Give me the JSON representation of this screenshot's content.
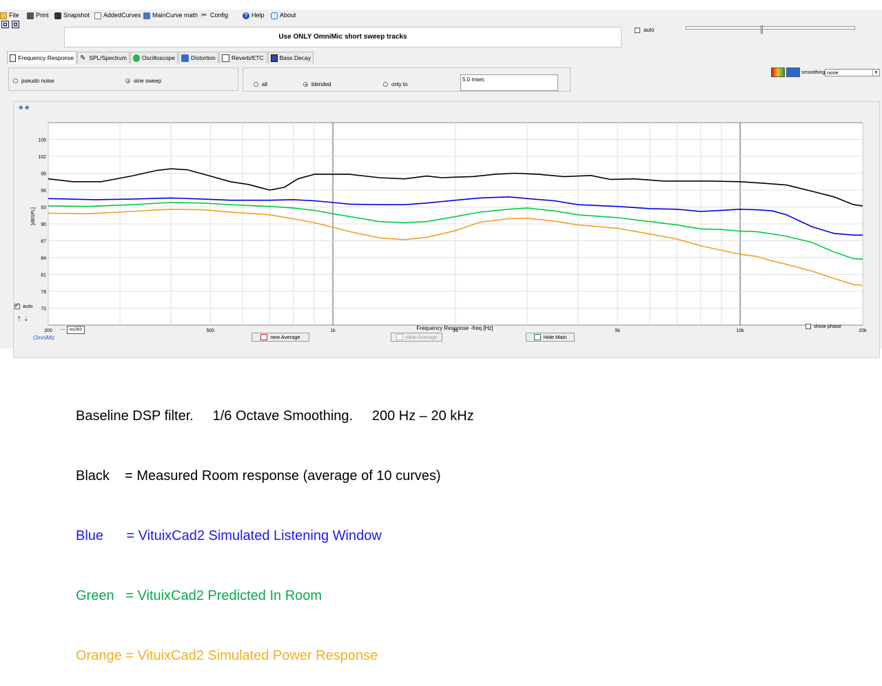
{
  "menu": {
    "items": [
      {
        "label": "File",
        "icon": "folder-icon"
      },
      {
        "label": "Print",
        "icon": "printer-icon"
      },
      {
        "label": "Snapshot",
        "icon": "camera-icon"
      },
      {
        "label": "AddedCurves",
        "icon": "curves-icon"
      },
      {
        "label": "MainCurve math",
        "icon": "calculator-icon"
      },
      {
        "label": "Config",
        "icon": "tools-icon"
      },
      {
        "label": "Help",
        "icon": "help-icon"
      },
      {
        "label": "About",
        "icon": "chat-icon"
      }
    ]
  },
  "message": "Use ONLY OmniMic short sweep tracks",
  "auto_label": "auto",
  "tabs": [
    {
      "label": "Frequency Response",
      "active": true,
      "icon": "freq-response-icon"
    },
    {
      "label": "SPL/Spectrum",
      "active": false,
      "icon": "spl-icon"
    },
    {
      "label": "Oscilloscope",
      "active": false,
      "icon": "oscilloscope-icon"
    },
    {
      "label": "Distortion",
      "active": false,
      "icon": "distortion-icon"
    },
    {
      "label": "Reverb/ETC",
      "active": false,
      "icon": "reverb-icon"
    },
    {
      "label": "Bass Decay",
      "active": false,
      "icon": "bass-decay-icon"
    }
  ],
  "signal": {
    "pseudo_noise": "pseudo noise",
    "sine_sweep": "sine sweep",
    "selected": "sine sweep"
  },
  "window": {
    "all": "all",
    "blended": "blended",
    "only_to": "only to",
    "selected": "blended",
    "msec": "5.0 msec"
  },
  "smoothing": {
    "label": "smoothing",
    "value": "none"
  },
  "chart": {
    "chart_data": {
      "type": "line",
      "xlabel": "Frequency Response -freq [Hz]",
      "ylabel": "[dBSPL]",
      "x_scale": "log",
      "xlim": [
        200,
        20000
      ],
      "ylim": [
        72,
        108
      ],
      "yticks": [
        75,
        78,
        81,
        84,
        87,
        90,
        93,
        96,
        99,
        102,
        105
      ],
      "xtick_labels": [
        {
          "v": 200,
          "t": "200"
        },
        {
          "v": 500,
          "t": "500"
        },
        {
          "v": 1000,
          "t": "1k"
        },
        {
          "v": 2000,
          "t": "2k"
        },
        {
          "v": 5000,
          "t": "5k"
        },
        {
          "v": 10000,
          "t": "10k"
        },
        {
          "v": 20000,
          "t": "20k"
        }
      ],
      "grid": true,
      "series": [
        {
          "color": "#000000",
          "x": [
            200,
            230,
            270,
            320,
            370,
            400,
            440,
            500,
            560,
            620,
            700,
            760,
            820,
            900,
            1000,
            1100,
            1300,
            1500,
            1700,
            1850,
            2000,
            2200,
            2500,
            2800,
            3200,
            3700,
            4300,
            4800,
            5500,
            6500,
            7500,
            8500,
            10000,
            11500,
            13000,
            15000,
            17000,
            19000,
            20000
          ],
          "y": [
            98,
            97.5,
            97.5,
            98.5,
            99.5,
            99.8,
            99.6,
            98.5,
            97.5,
            97,
            96,
            96.5,
            98,
            98.8,
            98.8,
            98.8,
            98.2,
            98,
            98.5,
            98.2,
            98.3,
            98.4,
            98.8,
            99,
            98.8,
            98.4,
            98.6,
            97.9,
            98,
            97.6,
            97.6,
            97.6,
            97.5,
            97.2,
            96.9,
            95.8,
            94.8,
            93.4,
            93.2
          ]
        },
        {
          "color": "#0000dd",
          "x": [
            200,
            260,
            320,
            400,
            480,
            560,
            700,
            800,
            900,
            1000,
            1100,
            1300,
            1500,
            1700,
            2000,
            2300,
            2700,
            3000,
            3500,
            4000,
            5000,
            6000,
            7000,
            8000,
            9000,
            10000,
            11000,
            12000,
            13000,
            15000,
            17000,
            19000,
            20000
          ],
          "y": [
            94.5,
            94.3,
            94.4,
            94.6,
            94.4,
            94.2,
            94.2,
            94.3,
            94.1,
            93.8,
            93.5,
            93.4,
            93.4,
            93.7,
            94.2,
            94.6,
            94.8,
            94.5,
            94.1,
            93.4,
            93.1,
            92.7,
            92.6,
            92.2,
            92.4,
            92.6,
            92.5,
            92.3,
            91.6,
            89.5,
            88.3,
            88,
            88
          ]
        },
        {
          "color": "#00cc44",
          "x": [
            200,
            250,
            320,
            400,
            480,
            560,
            700,
            800,
            900,
            1000,
            1100,
            1300,
            1500,
            1700,
            2000,
            2300,
            2700,
            3000,
            3500,
            4000,
            5000,
            6000,
            7000,
            8000,
            9000,
            10000,
            11000,
            12000,
            13000,
            15000,
            17000,
            19000,
            20000
          ],
          "y": [
            93.2,
            93.1,
            93.4,
            93.8,
            93.7,
            93.4,
            93.1,
            92.8,
            92.4,
            91.8,
            91.3,
            90.4,
            90.2,
            90.4,
            91.3,
            92.1,
            92.6,
            92.8,
            92.3,
            91.6,
            91.1,
            90.4,
            89.8,
            89.1,
            89,
            88.7,
            88.6,
            88.2,
            87.8,
            86.7,
            85,
            83.8,
            83.7
          ]
        },
        {
          "color": "#f0a020",
          "x": [
            200,
            250,
            320,
            400,
            480,
            560,
            700,
            800,
            900,
            1000,
            1100,
            1300,
            1500,
            1700,
            2000,
            2300,
            2700,
            3000,
            3500,
            4000,
            5000,
            6000,
            7000,
            8000,
            9000,
            10000,
            11000,
            12000,
            13000,
            15000,
            17000,
            19000,
            20000
          ],
          "y": [
            91.9,
            91.8,
            92.2,
            92.6,
            92.5,
            92.1,
            91.6,
            90.9,
            90.2,
            89.4,
            88.6,
            87.5,
            87.2,
            87.6,
            88.8,
            90.3,
            90.9,
            91,
            90.5,
            89.8,
            89.2,
            88.2,
            87.3,
            86.1,
            85.3,
            84.6,
            84.2,
            83.4,
            82.8,
            81.6,
            80.3,
            79.2,
            79.1
          ]
        }
      ]
    },
    "auto_label": "auto",
    "omnimic_label": "OmniMic",
    "device_label": "ec263",
    "show_phase_label": "show phase",
    "new_average_label": "new Average",
    "clear_average_label": "clear Average",
    "hide_main_label": "Hide Main"
  },
  "caption": {
    "line1": "Baseline DSP filter.     1/6 Octave Smoothing.     200 Hz – 20 kHz",
    "line2": "Black    = Measured Room response (average of 10 curves)",
    "line3": "Blue      = VituixCad2 Simulated Listening Window",
    "line4": "Green   = VituixCad2 Predicted In Room",
    "line5": "Orange = VituixCad2 Simulated Power Response",
    "colors": {
      "black": "#000000",
      "blue": "#1a1ae6",
      "green": "#0aa84a",
      "orange": "#f0b020"
    }
  }
}
